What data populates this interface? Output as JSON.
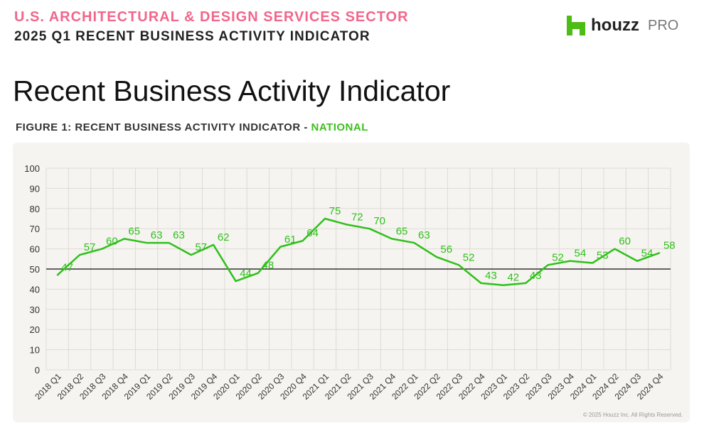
{
  "header": {
    "sector": "U.S. ARCHITECTURAL & DESIGN SERVICES SECTOR",
    "report": "2025 Q1 RECENT BUSINESS ACTIVITY INDICATOR",
    "logo_word": "houzz",
    "logo_pro": "PRO"
  },
  "title": "Recent Business Activity Indicator",
  "figure": {
    "label": "FIGURE 1: RECENT BUSINESS ACTIVITY INDICATOR - ",
    "scope": "NATIONAL"
  },
  "copyright": "© 2025 Houzz Inc. All Rights Reserved.",
  "colors": {
    "line": "#2ec01a",
    "pink": "#f2668b",
    "brand": "#4dbc15"
  },
  "chart_data": {
    "type": "line",
    "title": "Recent Business Activity Indicator - National",
    "xlabel": "",
    "ylabel": "",
    "ylim": [
      0,
      100
    ],
    "yticks": [
      0,
      10,
      20,
      30,
      40,
      50,
      60,
      70,
      80,
      90,
      100
    ],
    "reference_line": 50,
    "grid": true,
    "categories": [
      "2018 Q1",
      "2018 Q2",
      "2018 Q3",
      "2018 Q4",
      "2019 Q1",
      "2019 Q2",
      "2019 Q3",
      "2019 Q4",
      "2020 Q1",
      "2020 Q2",
      "2020 Q3",
      "2020 Q4",
      "2021 Q1",
      "2021 Q2",
      "2021 Q3",
      "2021 Q4",
      "2022 Q1",
      "2022 Q2",
      "2022 Q3",
      "2022 Q4",
      "2023 Q1",
      "2023 Q2",
      "2023 Q3",
      "2023 Q4",
      "2024 Q1",
      "2024 Q2",
      "2024 Q3",
      "2024 Q4"
    ],
    "series": [
      {
        "name": "National",
        "values": [
          47,
          57,
          60,
          65,
          63,
          63,
          57,
          62,
          44,
          48,
          61,
          64,
          75,
          72,
          70,
          65,
          63,
          56,
          52,
          43,
          42,
          43,
          52,
          54,
          53,
          60,
          54,
          58
        ]
      }
    ]
  }
}
